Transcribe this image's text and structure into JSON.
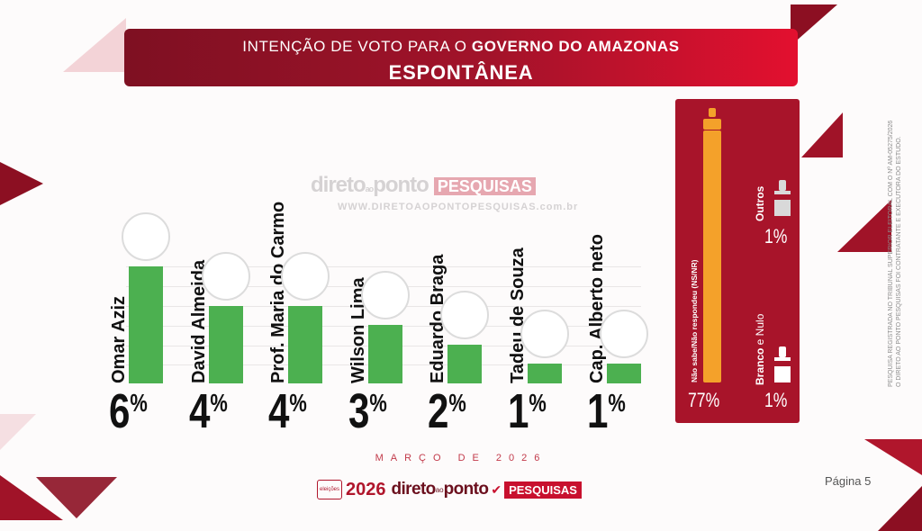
{
  "header": {
    "line1_prefix": "INTENÇÃO DE VOTO PARA O ",
    "line1_bold": "GOVERNO DO AMAZONAS",
    "line2": "ESPONTÂNEA"
  },
  "watermark": {
    "brand_a": "direto",
    "brand_small": "ao",
    "brand_b": "ponto",
    "brand_box": "PESQUISAS",
    "url": "WWW.DIRETOAOPONTOPESQUISAS.com.br"
  },
  "colors": {
    "accent_red": "#a8142a",
    "bar_green": "#4cb050",
    "bar_orange": "#f4a12a"
  },
  "chart_data": {
    "type": "bar",
    "categories": [
      "Omar Aziz",
      "David  Almeida",
      "Prof.  Maria do Carmo",
      "Wilson Lima",
      "Eduardo Braga",
      "Tadeu de  Souza",
      "Cap. Alberto neto"
    ],
    "values": [
      6,
      4,
      4,
      3,
      2,
      1,
      1
    ],
    "labels": [
      "6",
      "4",
      "4",
      "3",
      "2",
      "1",
      "1"
    ],
    "unit": "%",
    "extra": [
      {
        "label": "Não sabe/Não respondeu (NS/NR)",
        "value": 77,
        "display": "77%"
      },
      {
        "label": "Outros",
        "value": 1,
        "display": "1%"
      },
      {
        "label_bold": "Branco",
        "label_rest": " e Nulo",
        "value": 1,
        "display": "1%"
      }
    ]
  },
  "note_line1": "PESQUISA REGISTRADA NO TRIBUNAL SUPERIOR ELEITORAL COM O Nº AM-05275/2026",
  "note_line2": "O DIRETO AO PONTO PESQUISAS FOI CONTRATANTE E EXECUTORA DO ESTUDO.",
  "date": "MARÇO DE 2026",
  "footer": {
    "seal": "eleições",
    "year": "2026",
    "brand_a": "direto",
    "brand_small": "ao",
    "brand_b": "ponto",
    "box": "PESQUISAS"
  },
  "page_label": "Página 5"
}
